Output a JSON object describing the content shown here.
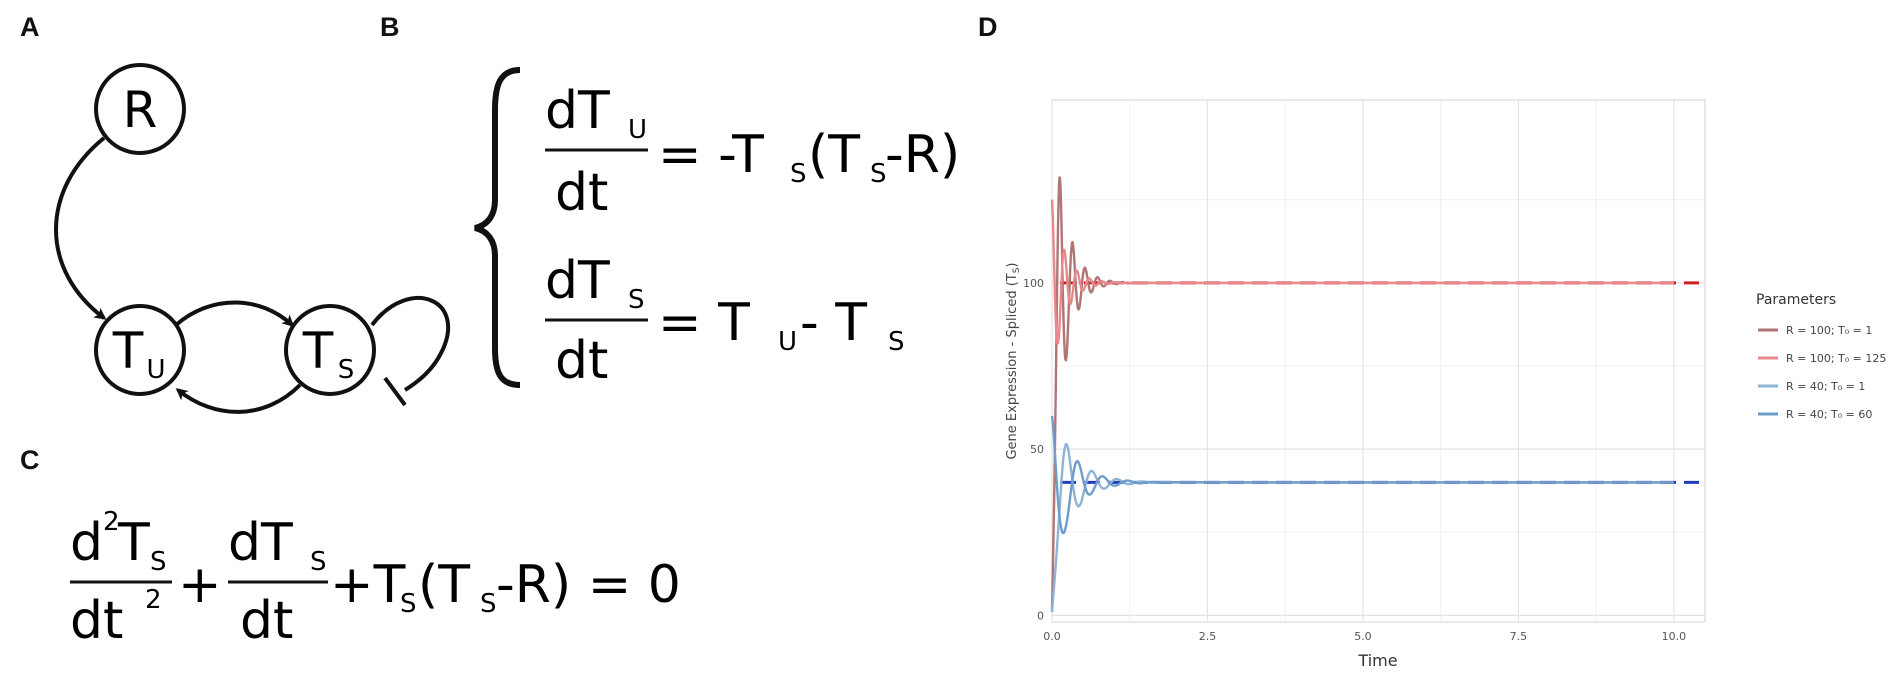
{
  "panels": {
    "a": {
      "letter": "A",
      "nodes": {
        "r": "R",
        "tu": {
          "base": "T",
          "sub": "U"
        },
        "ts": {
          "base": "T",
          "sub": "S"
        }
      }
    },
    "b": {
      "letter": "B",
      "eq1": {
        "num_d": "d",
        "num_T": "T",
        "num_sub": "U",
        "den": "dt",
        "rhs_a": "= -T",
        "rhs_sub1": "S",
        "rhs_b": "(T",
        "rhs_sub2": "S",
        "rhs_c": " -R)"
      },
      "eq2": {
        "num_d": "d",
        "num_T": "T",
        "num_sub": "S",
        "den": "dt",
        "rhs_a": "= T",
        "rhs_sub1": "U",
        "rhs_b": "- T",
        "rhs_sub2": "S"
      }
    },
    "c": {
      "letter": "C",
      "frac1": {
        "num": "d",
        "num_sup": "2",
        "num_T": "T",
        "num_sub": "S",
        "den": "dt",
        "den_sup": "2"
      },
      "plus1": "+",
      "frac2": {
        "num": "dT",
        "num_sub": "S",
        "den": "dt"
      },
      "rest_a": "+T",
      "rest_sub1": "S",
      "rest_b": "(T",
      "rest_sub2": "S",
      "rest_c": " -R) = 0"
    },
    "d": {
      "letter": "D"
    }
  },
  "chart_data": {
    "type": "line",
    "xlabel": "Time",
    "ylabel": "Gene Expression - Spliced (T",
    "ylabel_sub": "S",
    "ylabel_end": ")",
    "xlim": [
      0,
      10.5
    ],
    "ylim": [
      -2,
      155
    ],
    "xticks": [
      0,
      2.5,
      5,
      7.5,
      10
    ],
    "xtick_labels": [
      "0.0",
      "2.5",
      "5.0",
      "7.5",
      "10.0"
    ],
    "yticks": [
      0,
      50,
      100
    ],
    "ytick_labels": [
      "0",
      "50",
      "100"
    ],
    "grid": true,
    "legend": {
      "title": "Parameters",
      "placement": "right",
      "entries": [
        {
          "label": "R = 100; T₀ = 1",
          "color": "#b07575"
        },
        {
          "label": "R = 100; T₀ = 125",
          "color": "#e9878a"
        },
        {
          "label": "R = 40; T₀ = 1",
          "color": "#8db4d6"
        },
        {
          "label": "R = 40; T₀ = 60",
          "color": "#6f9cc9"
        }
      ]
    },
    "series": [
      {
        "model": "damped",
        "R": 100,
        "T0": 1,
        "color": "#b07575"
      },
      {
        "model": "damped",
        "R": 100,
        "T0": 125,
        "color": "#e9878a"
      },
      {
        "model": "damped",
        "R": 40,
        "T0": 1,
        "color": "#8db4d6"
      },
      {
        "model": "damped",
        "R": 40,
        "T0": 60,
        "color": "#6f9cc9"
      }
    ],
    "reference_lines": [
      {
        "y": 100,
        "color": "#cc1f1f",
        "style": "dashed"
      },
      {
        "y": 40,
        "color": "#1f3fbf",
        "style": "dashed"
      }
    ]
  }
}
